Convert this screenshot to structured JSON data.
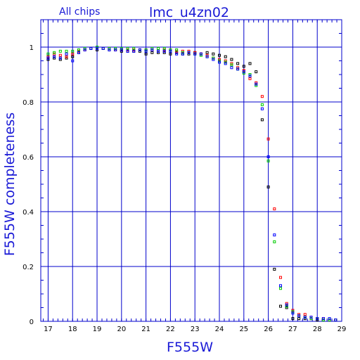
{
  "chart_data": {
    "type": "scatter",
    "title": "lmc_u4zn02",
    "subtitle": "All chips",
    "xlabel": "F555W",
    "ylabel": "F555W completeness",
    "xlim": [
      16.7,
      29
    ],
    "ylim": [
      0,
      1.1
    ],
    "xticks": [
      "17",
      "18",
      "19",
      "20",
      "21",
      "22",
      "23",
      "24",
      "25",
      "26",
      "27",
      "28",
      "29"
    ],
    "yticks": [
      "0",
      "0.2",
      "0.4",
      "0.6",
      "0.8",
      "1"
    ],
    "grid": true,
    "colors": {
      "axis": "#0000cc",
      "label": "#1a1ad6",
      "series_black": "#000000",
      "series_red": "#ff0000",
      "series_green": "#00cc00",
      "series_blue": "#0000ff"
    },
    "series": [
      {
        "color": "#000000",
        "x": [
          17.0,
          17.25,
          17.5,
          17.75,
          18.0,
          18.25,
          18.5,
          18.75,
          19.0,
          19.25,
          19.5,
          19.75,
          20.0,
          20.25,
          20.5,
          20.75,
          21.0,
          21.25,
          21.5,
          21.75,
          22.0,
          22.25,
          22.5,
          22.75,
          23.0,
          23.25,
          23.5,
          23.75,
          24.0,
          24.25,
          24.5,
          24.75,
          25.0,
          25.25,
          25.5,
          25.75,
          26.0,
          26.25,
          26.5,
          26.75,
          27.0,
          27.25,
          27.5,
          27.75,
          28.0,
          28.25,
          28.5,
          28.75
        ],
        "y": [
          0.955,
          0.96,
          0.955,
          0.96,
          0.965,
          0.98,
          0.99,
          0.995,
          0.99,
          0.995,
          0.99,
          0.99,
          0.985,
          0.985,
          0.985,
          0.985,
          0.975,
          0.98,
          0.98,
          0.98,
          0.975,
          0.98,
          0.975,
          0.975,
          0.98,
          0.975,
          0.98,
          0.975,
          0.97,
          0.965,
          0.955,
          0.94,
          0.93,
          0.94,
          0.91,
          0.735,
          0.49,
          0.19,
          0.055,
          0.05,
          0.01,
          0.01,
          0.01,
          0.01,
          0.005,
          0.005,
          0.005,
          0.005
        ]
      },
      {
        "color": "#ff0000",
        "x": [
          17.0,
          17.25,
          17.5,
          17.75,
          18.0,
          18.25,
          18.5,
          18.75,
          19.0,
          19.25,
          19.5,
          19.75,
          20.0,
          20.25,
          20.5,
          20.75,
          21.0,
          21.25,
          21.5,
          21.75,
          22.0,
          22.25,
          22.5,
          22.75,
          23.0,
          23.25,
          23.5,
          23.75,
          24.0,
          24.25,
          24.5,
          24.75,
          25.0,
          25.25,
          25.5,
          25.75,
          26.0,
          26.25,
          26.5,
          26.75,
          27.0,
          27.25,
          27.5,
          27.75,
          28.0,
          28.25,
          28.5,
          28.75
        ],
        "y": [
          0.965,
          0.975,
          0.97,
          0.965,
          0.975,
          0.985,
          0.99,
          0.995,
          0.995,
          0.995,
          0.995,
          0.99,
          0.99,
          0.99,
          0.99,
          0.99,
          0.99,
          0.99,
          0.995,
          0.99,
          0.99,
          0.985,
          0.985,
          0.985,
          0.98,
          0.975,
          0.97,
          0.96,
          0.955,
          0.95,
          0.94,
          0.925,
          0.915,
          0.885,
          0.87,
          0.82,
          0.665,
          0.41,
          0.16,
          0.065,
          0.04,
          0.025,
          0.025,
          0.015,
          0.01,
          0.01,
          0.005,
          0.005
        ]
      },
      {
        "color": "#00cc00",
        "x": [
          17.0,
          17.25,
          17.5,
          17.75,
          18.0,
          18.25,
          18.5,
          18.75,
          19.0,
          19.25,
          19.5,
          19.75,
          20.0,
          20.25,
          20.5,
          20.75,
          21.0,
          21.25,
          21.5,
          21.75,
          22.0,
          22.25,
          22.5,
          22.75,
          23.0,
          23.25,
          23.5,
          23.75,
          24.0,
          24.25,
          24.5,
          24.75,
          25.0,
          25.25,
          25.5,
          25.75,
          26.0,
          26.25,
          26.5,
          26.75,
          27.0,
          27.25,
          27.5,
          27.75,
          28.0,
          28.25,
          28.5,
          28.75
        ],
        "y": [
          0.975,
          0.98,
          0.985,
          0.985,
          0.985,
          0.99,
          0.995,
          0.995,
          1.0,
          0.995,
          0.995,
          0.995,
          0.995,
          0.995,
          0.995,
          0.99,
          0.99,
          0.995,
          0.995,
          0.995,
          0.99,
          0.99,
          0.98,
          0.98,
          0.975,
          0.97,
          0.965,
          0.96,
          0.95,
          0.945,
          0.935,
          0.92,
          0.905,
          0.9,
          0.86,
          0.79,
          0.585,
          0.29,
          0.12,
          0.055,
          0.035,
          0.02,
          0.015,
          0.01,
          0.01,
          0.005,
          0.005,
          0.005
        ]
      },
      {
        "color": "#0000ff",
        "x": [
          17.0,
          17.25,
          17.5,
          17.75,
          18.0,
          18.25,
          18.5,
          18.75,
          19.0,
          19.25,
          19.5,
          19.75,
          20.0,
          20.25,
          20.5,
          20.75,
          21.0,
          21.25,
          21.5,
          21.75,
          22.0,
          22.25,
          22.5,
          22.75,
          23.0,
          23.25,
          23.5,
          23.75,
          24.0,
          24.25,
          24.5,
          24.75,
          25.0,
          25.25,
          25.5,
          25.75,
          26.0,
          26.25,
          26.5,
          26.75,
          27.0,
          27.25,
          27.5,
          27.75,
          28.0,
          28.25,
          28.5,
          28.75
        ],
        "y": [
          0.96,
          0.965,
          0.96,
          0.975,
          0.95,
          0.98,
          0.99,
          0.995,
          0.995,
          0.995,
          0.99,
          0.99,
          0.99,
          0.985,
          0.985,
          0.99,
          0.985,
          0.99,
          0.985,
          0.985,
          0.985,
          0.975,
          0.975,
          0.98,
          0.975,
          0.975,
          0.965,
          0.955,
          0.945,
          0.94,
          0.925,
          0.92,
          0.91,
          0.895,
          0.865,
          0.775,
          0.6,
          0.315,
          0.13,
          0.06,
          0.03,
          0.02,
          0.015,
          0.015,
          0.01,
          0.01,
          0.01,
          0.005
        ]
      }
    ]
  }
}
